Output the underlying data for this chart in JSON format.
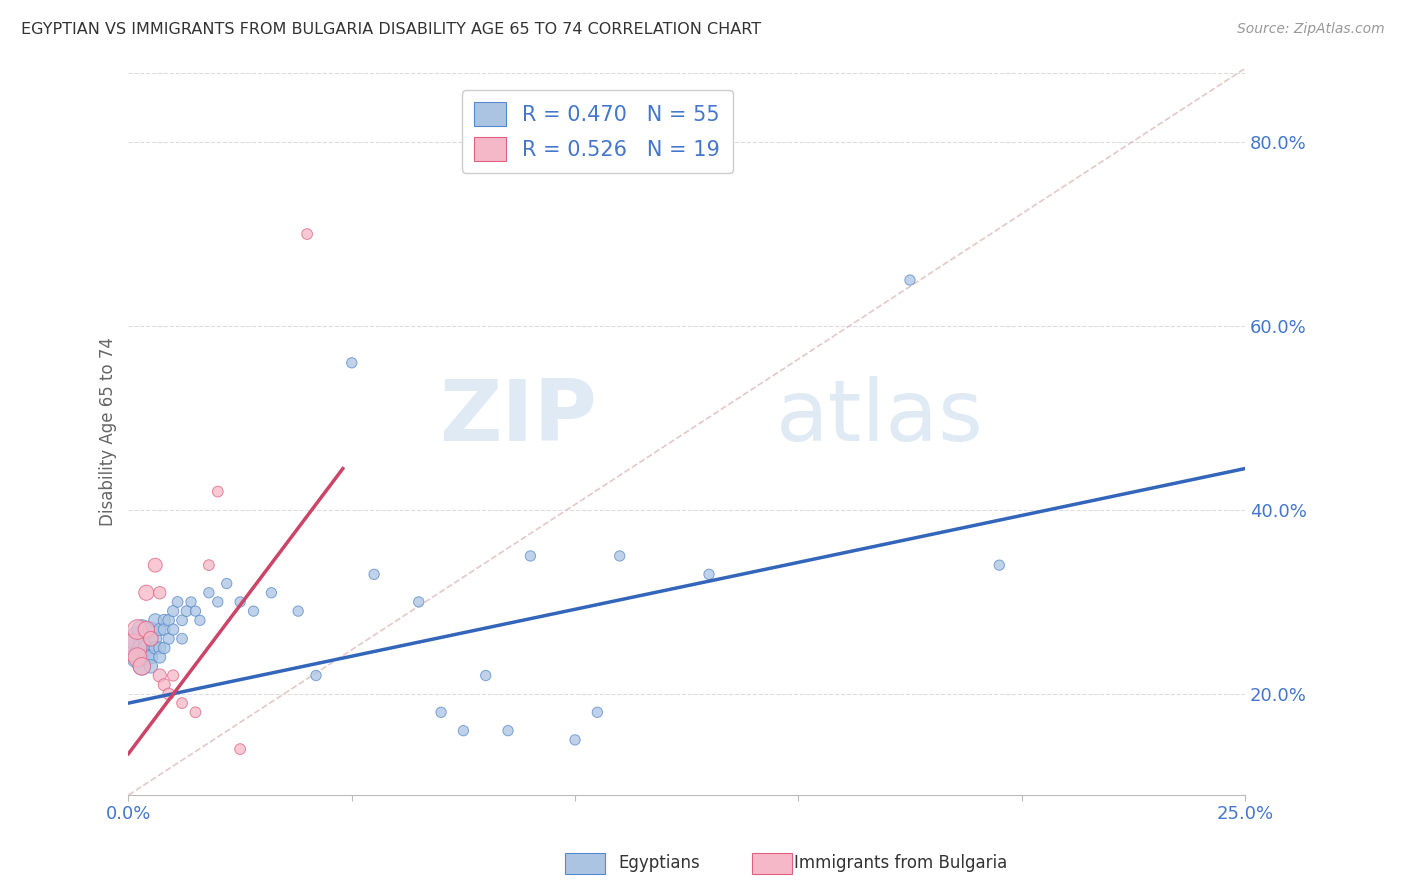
{
  "title": "EGYPTIAN VS IMMIGRANTS FROM BULGARIA DISABILITY AGE 65 TO 74 CORRELATION CHART",
  "source": "Source: ZipAtlas.com",
  "ylabel": "Disability Age 65 to 74",
  "watermark_zip": "ZIP",
  "watermark_atlas": "atlas",
  "r_blue": 0.47,
  "n_blue": 55,
  "r_pink": 0.526,
  "n_pink": 19,
  "legend_label_blue": "Egyptians",
  "legend_label_pink": "Immigrants from Bulgaria",
  "xlim": [
    0.0,
    0.25
  ],
  "ylim": [
    0.09,
    0.88
  ],
  "ytick_values": [
    0.2,
    0.4,
    0.6,
    0.8
  ],
  "xtick_values": [
    0.0,
    0.05,
    0.1,
    0.15,
    0.2,
    0.25
  ],
  "color_blue_fill": "#aac4e2",
  "color_pink_fill": "#f5b8c8",
  "color_blue_edge": "#5588cc",
  "color_pink_edge": "#e06080",
  "color_text_blue": "#4477cc",
  "trendline_blue": "#3366bb",
  "trendline_pink": "#cc4466",
  "diag_color": "#ddbbbb",
  "blue_x": [
    0.001,
    0.002,
    0.002,
    0.003,
    0.003,
    0.003,
    0.004,
    0.004,
    0.004,
    0.005,
    0.005,
    0.005,
    0.005,
    0.006,
    0.006,
    0.006,
    0.007,
    0.007,
    0.007,
    0.008,
    0.008,
    0.008,
    0.009,
    0.009,
    0.01,
    0.01,
    0.011,
    0.012,
    0.012,
    0.013,
    0.014,
    0.015,
    0.016,
    0.018,
    0.02,
    0.022,
    0.025,
    0.028,
    0.032,
    0.038,
    0.042,
    0.05,
    0.055,
    0.065,
    0.07,
    0.075,
    0.08,
    0.085,
    0.09,
    0.1,
    0.105,
    0.11,
    0.13,
    0.175,
    0.195
  ],
  "blue_y": [
    0.25,
    0.26,
    0.24,
    0.27,
    0.25,
    0.23,
    0.26,
    0.25,
    0.24,
    0.27,
    0.26,
    0.24,
    0.23,
    0.28,
    0.26,
    0.25,
    0.27,
    0.25,
    0.24,
    0.28,
    0.27,
    0.25,
    0.28,
    0.26,
    0.29,
    0.27,
    0.3,
    0.28,
    0.26,
    0.29,
    0.3,
    0.29,
    0.28,
    0.31,
    0.3,
    0.32,
    0.3,
    0.29,
    0.31,
    0.29,
    0.22,
    0.56,
    0.33,
    0.3,
    0.18,
    0.16,
    0.22,
    0.16,
    0.35,
    0.15,
    0.18,
    0.35,
    0.33,
    0.65,
    0.34
  ],
  "blue_sizes": [
    400,
    300,
    250,
    200,
    180,
    160,
    150,
    140,
    130,
    120,
    110,
    100,
    95,
    90,
    85,
    80,
    80,
    75,
    75,
    75,
    70,
    70,
    70,
    65,
    65,
    65,
    60,
    60,
    60,
    60,
    55,
    55,
    55,
    55,
    55,
    55,
    55,
    55,
    55,
    55,
    55,
    55,
    55,
    55,
    55,
    55,
    55,
    55,
    55,
    55,
    55,
    55,
    55,
    55,
    55
  ],
  "pink_x": [
    0.001,
    0.002,
    0.002,
    0.003,
    0.004,
    0.004,
    0.005,
    0.006,
    0.007,
    0.007,
    0.008,
    0.009,
    0.01,
    0.012,
    0.015,
    0.018,
    0.02,
    0.025,
    0.04
  ],
  "pink_y": [
    0.25,
    0.27,
    0.24,
    0.23,
    0.27,
    0.31,
    0.26,
    0.34,
    0.22,
    0.31,
    0.21,
    0.2,
    0.22,
    0.19,
    0.18,
    0.34,
    0.42,
    0.14,
    0.7
  ],
  "pink_sizes": [
    400,
    200,
    180,
    160,
    140,
    120,
    110,
    100,
    90,
    80,
    75,
    70,
    65,
    60,
    60,
    60,
    60,
    60,
    60
  ],
  "blue_trend": [
    0.0,
    0.25,
    0.19,
    0.445
  ],
  "pink_trend": [
    0.0,
    0.048,
    0.135,
    0.445
  ]
}
